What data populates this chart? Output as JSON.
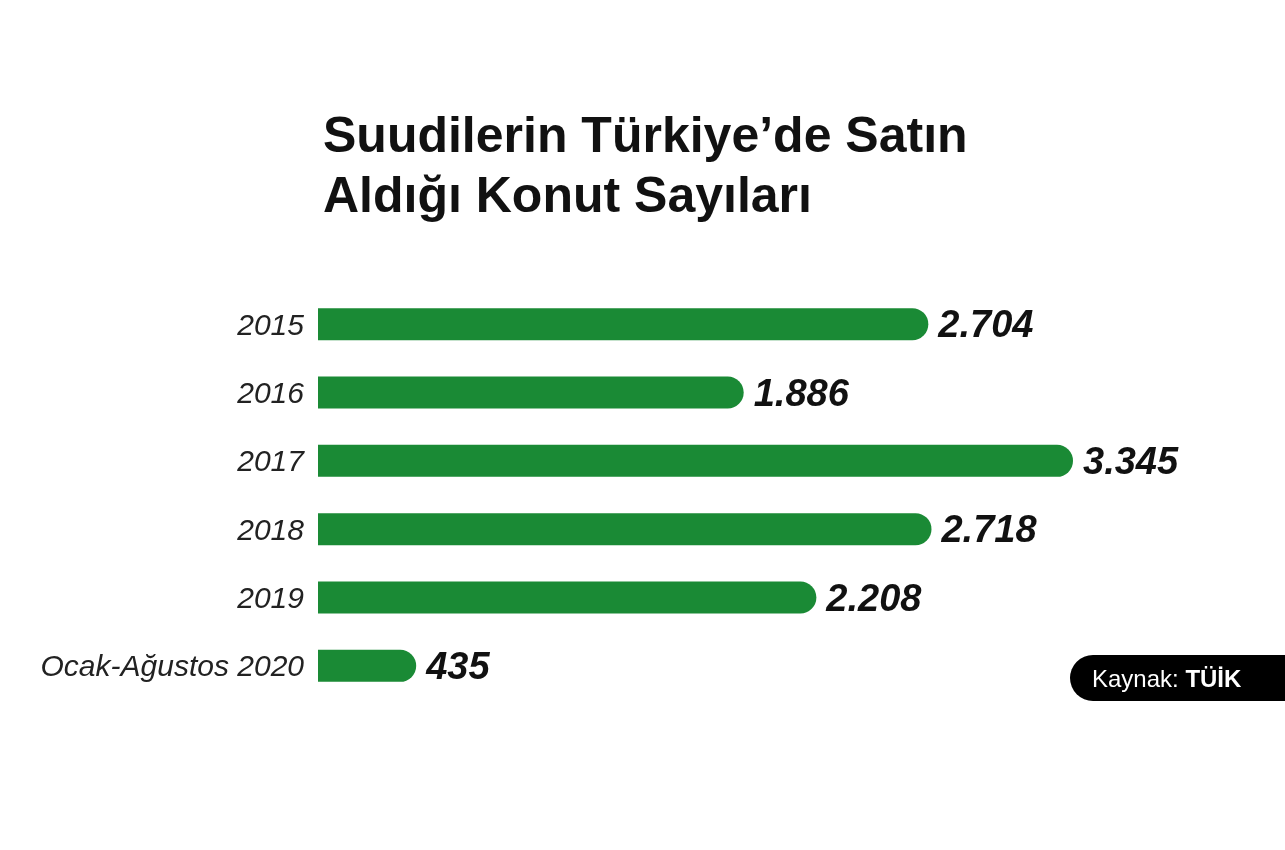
{
  "chart_data": {
    "type": "bar",
    "orientation": "horizontal",
    "title": "Suudilerin Türkiye’de Satın Aldığı Konut Sayıları",
    "categories": [
      "2015",
      "2016",
      "2017",
      "2018",
      "2019",
      "Ocak-Ağustos 2020"
    ],
    "values": [
      2704,
      1886,
      3345,
      2718,
      2208,
      435
    ],
    "value_labels": [
      "2.704",
      "1.886",
      "3.345",
      "2.718",
      "2.208",
      "435"
    ],
    "color": "#1a8a35",
    "annotations": [
      "Kaynak: TÜİK"
    ]
  }
}
